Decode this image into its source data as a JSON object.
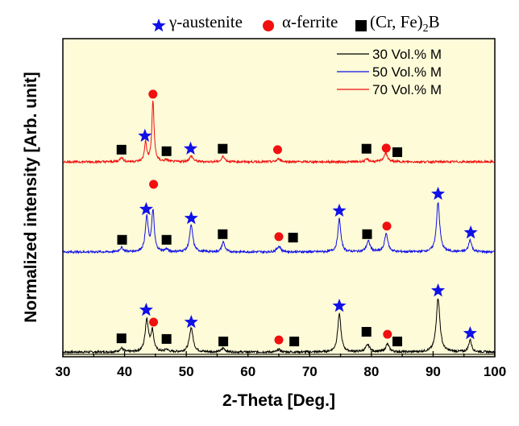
{
  "chart_data": {
    "type": "line",
    "title": "",
    "xlabel": "2-Theta [Deg.]",
    "ylabel": "Normalized intensity [Arb. unit]",
    "xlim": [
      30,
      100
    ],
    "ylim": [
      0,
      102
    ],
    "xticks": [
      "30",
      "40",
      "50",
      "60",
      "70",
      "80",
      "90",
      "100"
    ],
    "xtick_values": [
      30,
      40,
      50,
      60,
      70,
      80,
      90,
      100
    ],
    "grid": false,
    "background": "#fdfbd8",
    "legend_position": "top-right",
    "phase_legend": {
      "austenite": {
        "label": "γ-austenite",
        "color": "#1010e8",
        "marker": "star"
      },
      "ferrite": {
        "label": "α-ferrite",
        "color": "#f01010",
        "marker": "circle"
      },
      "boride": {
        "label": "(Cr, Fe)",
        "sub": "2",
        "suffix": "B",
        "color": "#000000",
        "marker": "square"
      }
    },
    "series": [
      {
        "name": "30 Vol.% M",
        "color": "#000000",
        "baseline": 1.5,
        "peaks": [
          [
            39.5,
            1.2,
            0.5
          ],
          [
            43.6,
            10.3,
            0.45
          ],
          [
            44.5,
            6.5,
            0.4
          ],
          [
            46.8,
            0.8,
            0.4
          ],
          [
            50.8,
            7.8,
            0.5
          ],
          [
            56.0,
            1.2,
            0.5
          ],
          [
            65.0,
            0.8,
            0.4
          ],
          [
            74.8,
            12.2,
            0.45
          ],
          [
            79.4,
            2.2,
            0.6
          ],
          [
            82.6,
            2.5,
            0.5
          ],
          [
            90.8,
            17.3,
            0.5
          ],
          [
            96.0,
            3.9,
            0.4
          ]
        ],
        "markers": [
          [
            "boride",
            39.5,
            5.9
          ],
          [
            "austenite",
            43.5,
            15
          ],
          [
            "ferrite",
            44.7,
            11.1
          ],
          [
            "boride",
            46.8,
            5.7
          ],
          [
            "austenite",
            50.8,
            11.1
          ],
          [
            "boride",
            56,
            4.9
          ],
          [
            "ferrite",
            65,
            5.4
          ],
          [
            "boride",
            67.5,
            4.9
          ],
          [
            "austenite",
            74.8,
            16.3
          ],
          [
            "boride",
            79.2,
            8
          ],
          [
            "ferrite",
            82.6,
            7.2
          ],
          [
            "boride",
            84.2,
            4.9
          ],
          [
            "austenite",
            90.8,
            21.2
          ],
          [
            "austenite",
            96,
            7.5
          ]
        ]
      },
      {
        "name": "50 Vol.% M",
        "color": "#1010e8",
        "baseline": 33.6,
        "peaks": [
          [
            39.5,
            1.3,
            0.5
          ],
          [
            43.6,
            11.0,
            0.4
          ],
          [
            44.6,
            13.0,
            0.35
          ],
          [
            46.8,
            0.8,
            0.4
          ],
          [
            50.8,
            8.5,
            0.45
          ],
          [
            56.0,
            3.2,
            0.4
          ],
          [
            65.0,
            1.8,
            0.5
          ],
          [
            74.8,
            10.6,
            0.4
          ],
          [
            79.5,
            3.4,
            0.5
          ],
          [
            82.4,
            5.9,
            0.45
          ],
          [
            90.8,
            15.8,
            0.45
          ],
          [
            96.0,
            3.9,
            0.4
          ]
        ],
        "markers": [
          [
            "boride",
            39.6,
            37.5
          ],
          [
            "austenite",
            43.5,
            47.3
          ],
          [
            "ferrite",
            44.7,
            55.3
          ],
          [
            "boride",
            46.8,
            37.5
          ],
          [
            "austenite",
            50.8,
            44.4
          ],
          [
            "boride",
            55.9,
            39.3
          ],
          [
            "ferrite",
            65,
            38.5
          ],
          [
            "boride",
            67.3,
            38.2
          ],
          [
            "austenite",
            74.8,
            46.8
          ],
          [
            "boride",
            79.3,
            39.3
          ],
          [
            "ferrite",
            82.5,
            41.9
          ],
          [
            "austenite",
            90.8,
            52.2
          ],
          [
            "austenite",
            96.1,
            39.8
          ]
        ]
      },
      {
        "name": "70 Vol.% M",
        "color": "#f01010",
        "baseline": 62.5,
        "peaks": [
          [
            39.5,
            1.5,
            0.4
          ],
          [
            43.4,
            6.3,
            0.3
          ],
          [
            44.6,
            19.6,
            0.3
          ],
          [
            46.8,
            0.6,
            0.4
          ],
          [
            50.8,
            1.8,
            0.5
          ],
          [
            56.0,
            1.8,
            0.4
          ],
          [
            65.0,
            1.0,
            0.5
          ],
          [
            79.3,
            0.8,
            0.5
          ],
          [
            82.3,
            2.8,
            0.5
          ]
        ],
        "markers": [
          [
            "boride",
            39.5,
            66.4
          ],
          [
            "austenite",
            43.3,
            70.8
          ],
          [
            "ferrite",
            44.6,
            84.2
          ],
          [
            "boride",
            46.8,
            65.9
          ],
          [
            "austenite",
            50.7,
            66.7
          ],
          [
            "boride",
            55.9,
            66.7
          ],
          [
            "ferrite",
            64.8,
            66.4
          ],
          [
            "boride",
            79.2,
            66.7
          ],
          [
            "ferrite",
            82.4,
            66.9
          ],
          [
            "boride",
            84.2,
            65.6
          ]
        ]
      }
    ]
  }
}
